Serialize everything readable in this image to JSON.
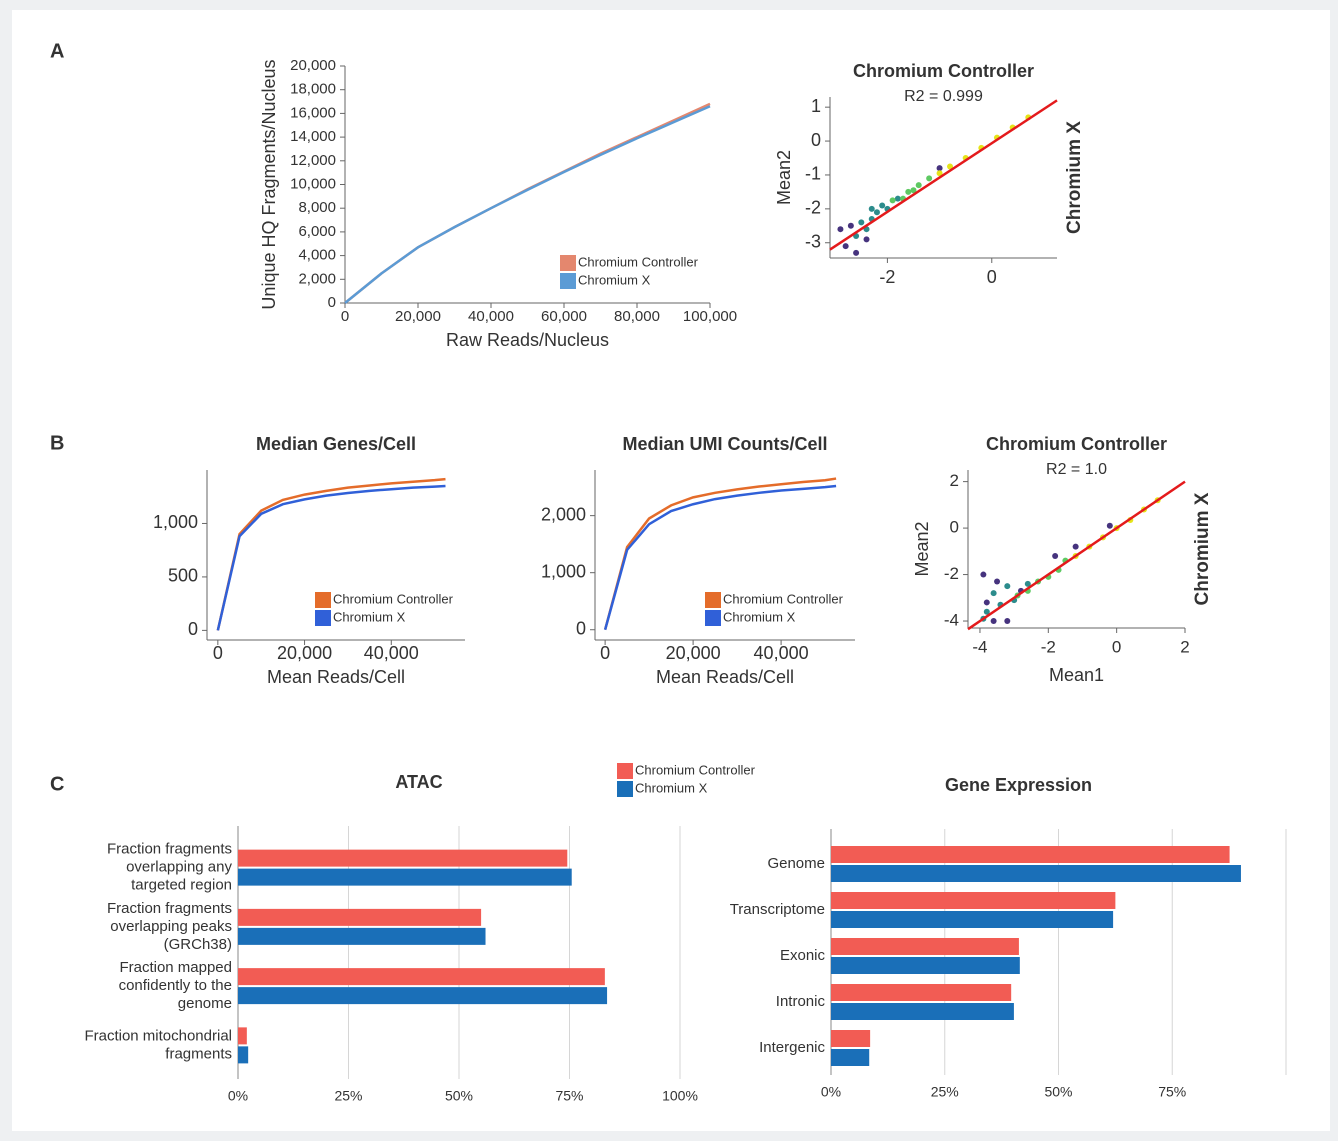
{
  "panel_labels": [
    "A",
    "B",
    "C"
  ],
  "chart_data": [
    {
      "type": "line",
      "x_label": "Raw Reads/Nucleus",
      "y_label": "Unique HQ Fragments/Nucleus",
      "x": [
        0,
        10000,
        20000,
        30000,
        40000,
        50000,
        60000,
        70000,
        80000,
        90000,
        100000
      ],
      "series": [
        {
          "name": "Chromium Controller",
          "color": "#e4876e",
          "values": [
            0,
            2500,
            4700,
            6400,
            8000,
            9600,
            11100,
            12600,
            14000,
            15400,
            16800
          ]
        },
        {
          "name": "Chromium X",
          "color": "#5b9bd5",
          "values": [
            0,
            2500,
            4700,
            6400,
            8000,
            9550,
            11050,
            12500,
            13900,
            15250,
            16600
          ]
        }
      ],
      "xlim": [
        0,
        100000
      ],
      "ylim": [
        0,
        20000
      ],
      "xticks": [
        0,
        {
          "value": 20000,
          "label": "20,000"
        },
        {
          "value": 40000,
          "label": "40,000"
        },
        {
          "value": 60000,
          "label": "60,000"
        },
        {
          "value": 80000,
          "label": "80,000"
        },
        {
          "value": 100000,
          "label": "100,000"
        }
      ],
      "yticks": [
        0,
        {
          "value": 2000,
          "label": "2,000"
        },
        {
          "value": 4000,
          "label": "4,000"
        },
        {
          "value": 6000,
          "label": "6,000"
        },
        {
          "value": 8000,
          "label": "8,000"
        },
        {
          "value": 10000,
          "label": "10,000"
        },
        {
          "value": 12000,
          "label": "12,000"
        },
        {
          "value": 14000,
          "label": "14,000"
        },
        {
          "value": 16000,
          "label": "16,000"
        },
        {
          "value": 18000,
          "label": "18,000"
        },
        {
          "value": 20000,
          "label": "20,000"
        }
      ],
      "legend": "lower right"
    },
    {
      "type": "scatter",
      "title": "Chromium Controller",
      "subtitle": "R2 = 0.999",
      "y_label": "Mean2",
      "right_label": "Chromium X",
      "series": [
        {
          "color": "#46337e",
          "x": [
            -2.8,
            -2.6,
            -2.7,
            -2.4,
            -1.0,
            -2.9
          ],
          "y": [
            -3.1,
            -3.3,
            -2.5,
            -2.9,
            -0.8,
            -2.6
          ]
        },
        {
          "color": "#2c8c8c",
          "x": [
            -2.5,
            -2.3,
            -2.2,
            -2.0,
            -2.4,
            -2.1,
            -1.8,
            -2.6,
            -2.3
          ],
          "y": [
            -2.4,
            -2.3,
            -2.1,
            -2.0,
            -2.6,
            -1.9,
            -1.7,
            -2.8,
            -2.0
          ]
        },
        {
          "color": "#5ec962",
          "x": [
            -1.6,
            -1.4,
            -1.2,
            -1.7,
            -1.9,
            -1.5
          ],
          "y": [
            -1.5,
            -1.3,
            -1.1,
            -1.7,
            -1.75,
            -1.45
          ]
        },
        {
          "color": "#e5e419",
          "x": [
            -1.0,
            -0.8,
            -0.5,
            -0.2,
            0.1,
            0.4,
            0.7
          ],
          "y": [
            -0.95,
            -0.75,
            -0.5,
            -0.2,
            0.1,
            0.4,
            0.7
          ]
        }
      ],
      "fit": {
        "color": "#e41a1c",
        "x": [
          -3.1,
          1.25
        ],
        "y": [
          -3.2,
          1.2
        ]
      },
      "xlim": [
        -3.1,
        1.25
      ],
      "ylim": [
        -3.45,
        1.3
      ],
      "xticks": [
        -2,
        0
      ],
      "yticks": [
        -3,
        -2,
        -1,
        0,
        1
      ]
    },
    {
      "type": "line",
      "title": "Median Genes/Cell",
      "x_label": "Mean Reads/Cell",
      "x": [
        0,
        5000,
        10000,
        15000,
        20000,
        25000,
        30000,
        35000,
        40000,
        45000,
        50000,
        52500
      ],
      "series": [
        {
          "name": "Chromium Controller",
          "color": "#e46c2a",
          "values": [
            0,
            900,
            1120,
            1220,
            1270,
            1305,
            1335,
            1355,
            1375,
            1390,
            1405,
            1415
          ]
        },
        {
          "name": "Chromium X",
          "color": "#3060d8",
          "values": [
            0,
            880,
            1090,
            1180,
            1225,
            1260,
            1285,
            1305,
            1320,
            1335,
            1345,
            1350
          ]
        }
      ],
      "xlim": [
        -2500,
        57000
      ],
      "ylim": [
        -90,
        1500
      ],
      "xticks": [
        0,
        {
          "value": 20000,
          "label": "20,000"
        },
        {
          "value": 40000,
          "label": "40,000"
        }
      ],
      "yticks": [
        0,
        500,
        {
          "value": 1000,
          "label": "1,000"
        }
      ],
      "legend": "lower right"
    },
    {
      "type": "line",
      "title": "Median UMI Counts/Cell",
      "x_label": "Mean Reads/Cell",
      "x": [
        0,
        5000,
        10000,
        15000,
        20000,
        25000,
        30000,
        35000,
        40000,
        45000,
        50000,
        52500
      ],
      "series": [
        {
          "name": "Chromium Controller",
          "color": "#e46c2a",
          "values": [
            0,
            1450,
            1950,
            2180,
            2320,
            2400,
            2460,
            2510,
            2550,
            2590,
            2620,
            2650
          ]
        },
        {
          "name": "Chromium X",
          "color": "#3060d8",
          "values": [
            0,
            1400,
            1850,
            2080,
            2200,
            2290,
            2350,
            2400,
            2440,
            2470,
            2500,
            2520
          ]
        }
      ],
      "xlim": [
        -2300,
        56800
      ],
      "ylim": [
        -180,
        2800
      ],
      "xticks": [
        0,
        {
          "value": 20000,
          "label": "20,000"
        },
        {
          "value": 40000,
          "label": "40,000"
        }
      ],
      "yticks": [
        0,
        {
          "value": 1000,
          "label": "1,000"
        },
        {
          "value": 2000,
          "label": "2,000"
        }
      ],
      "legend": "lower right"
    },
    {
      "type": "scatter",
      "title": "Chromium Controller",
      "subtitle": "R2 = 1.0",
      "x_label": "Mean1",
      "y_label": "Mean2",
      "right_label": "Chromium X",
      "series": [
        {
          "color": "#46337e",
          "x": [
            -3.9,
            -3.5,
            -3.8,
            -2.8,
            -1.8,
            -1.2,
            -0.2,
            -3.6,
            -3.2
          ],
          "y": [
            -2.0,
            -2.3,
            -3.2,
            -2.7,
            -1.2,
            -0.8,
            0.1,
            -4.0,
            -4.0
          ]
        },
        {
          "color": "#2c8c8c",
          "x": [
            -3.8,
            -3.4,
            -3.0,
            -3.6,
            -3.2,
            -2.6,
            -3.9
          ],
          "y": [
            -3.6,
            -3.3,
            -3.1,
            -2.8,
            -2.5,
            -2.4,
            -3.9
          ]
        },
        {
          "color": "#5ec962",
          "x": [
            -2.6,
            -2.3,
            -2.0,
            -1.7,
            -2.9,
            -1.5
          ],
          "y": [
            -2.7,
            -2.3,
            -2.1,
            -1.8,
            -2.9,
            -1.4
          ]
        },
        {
          "color": "#e5e419",
          "x": [
            -1.2,
            -0.8,
            -0.4,
            0,
            0.4,
            0.8,
            1.2
          ],
          "y": [
            -1.2,
            -0.8,
            -0.4,
            0,
            0.35,
            0.8,
            1.2
          ]
        }
      ],
      "fit": {
        "color": "#e41a1c",
        "x": [
          -4.35,
          2
        ],
        "y": [
          -4.35,
          2
        ]
      },
      "xlim": [
        -4.35,
        2
      ],
      "ylim": [
        -4.3,
        2.5
      ],
      "xticks": [
        -4,
        -2,
        0,
        2
      ],
      "yticks": [
        -4,
        -2,
        0,
        2
      ]
    },
    {
      "type": "hbar",
      "title": "ATAC",
      "categories": [
        "Fraction fragments\noverlapping any\ntargeted region",
        "Fraction fragments\noverlapping peaks\n(GRCh38)",
        "Fraction mapped\nconfidently to the\ngenome",
        "Fraction mitochondrial\nfragments"
      ],
      "series": [
        {
          "name": "Chromium Controller",
          "color": "#f25c54",
          "values": [
            74.5,
            55,
            83,
            2
          ]
        },
        {
          "name": "Chromium X",
          "color": "#1a6fb8",
          "values": [
            75.5,
            56,
            83.5,
            2.3
          ]
        }
      ],
      "xlim": [
        0,
        100
      ],
      "xticks": [
        {
          "value": 0,
          "label": "0%"
        },
        {
          "value": 25,
          "label": "25%"
        },
        {
          "value": 50,
          "label": "50%"
        },
        {
          "value": 75,
          "label": "75%"
        },
        {
          "value": 100,
          "label": "100%"
        }
      ],
      "legend": "top right"
    },
    {
      "type": "hbar",
      "title": "Gene Expression",
      "categories": [
        "Genome",
        "Transcriptome",
        "Exonic",
        "Intronic",
        "Intergenic"
      ],
      "series": [
        {
          "color": "#f25c54",
          "values": [
            87.6,
            62.5,
            41.3,
            39.6,
            8.6
          ]
        },
        {
          "color": "#1a6fb8",
          "values": [
            90.1,
            62,
            41.5,
            40.2,
            8.4
          ]
        }
      ],
      "xlim": [
        0,
        100
      ],
      "xticks": [
        {
          "value": 0,
          "label": "0%"
        },
        {
          "value": 25,
          "label": "25%"
        },
        {
          "value": 50,
          "label": "50%"
        },
        {
          "value": 75,
          "label": "75%"
        }
      ]
    }
  ]
}
